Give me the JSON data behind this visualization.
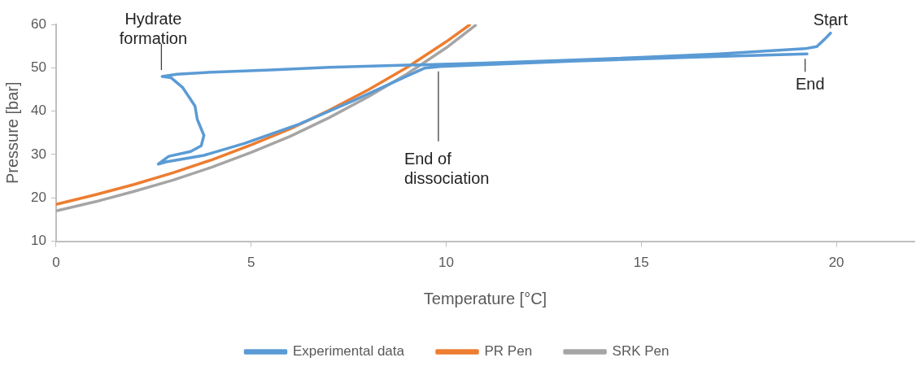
{
  "chart_data": {
    "type": "line",
    "xlabel": "Temperature [°C]",
    "ylabel": "Pressure [bar]",
    "xlim": [
      0,
      22
    ],
    "xticks": [
      0,
      5,
      10,
      15,
      20
    ],
    "ylim": [
      10,
      60
    ],
    "yticks": [
      10,
      20,
      30,
      40,
      50,
      60
    ],
    "grid": false,
    "legend": "bottom",
    "marker": "none",
    "line_style": "solid",
    "series": [
      {
        "name": "Experimental data",
        "color": "#5b9bd5",
        "x": [
          19.85,
          19.7,
          19.5,
          19.2,
          17,
          15,
          13,
          11,
          9,
          7,
          5.5,
          4,
          3.1,
          2.72,
          2.95,
          3.24,
          3.56,
          3.62,
          3.79,
          3.72,
          3.45,
          2.89,
          2.62,
          2.82,
          3.79,
          4.84,
          6.23,
          7.64,
          8.68,
          9.44,
          9.85,
          11,
          13.2,
          16.2,
          19.25
        ],
        "values": [
          58,
          56.6,
          54.9,
          54.4,
          53.2,
          52.4,
          51.7,
          51.1,
          50.6,
          50.1,
          49.5,
          49,
          48.5,
          48,
          47.7,
          45.5,
          41.2,
          38.1,
          34.4,
          32,
          30.7,
          29.6,
          27.8,
          28.3,
          29.8,
          32.6,
          37,
          42.5,
          46.8,
          49.9,
          50.3,
          50.7,
          51.5,
          52.4,
          53.2
        ]
      },
      {
        "name": "PR Pen",
        "color": "#ed7d31",
        "x": [
          0,
          1,
          2,
          3,
          4,
          5,
          6,
          7,
          8,
          9,
          10,
          10.6
        ],
        "values": [
          18.5,
          20.7,
          23.1,
          25.8,
          28.8,
          32.2,
          35.9,
          40.2,
          44.9,
          50.1,
          56,
          59.9
        ]
      },
      {
        "name": "SRK Pen",
        "color": "#a5a5a5",
        "x": [
          0,
          1,
          2,
          3,
          4,
          5,
          6,
          7,
          8,
          9,
          10,
          10.75
        ],
        "values": [
          17,
          19.1,
          21.5,
          24.1,
          27.1,
          30.5,
          34.2,
          38.5,
          43.3,
          48.6,
          54.6,
          59.8
        ]
      }
    ],
    "annotations": [
      {
        "text": "Hydrate formation",
        "x": 2.7,
        "y": 48
      },
      {
        "text": "Start",
        "x": 19.85,
        "y": 58
      },
      {
        "text": "End",
        "x": 19.2,
        "y": 53.2
      },
      {
        "text": "End of dissociation",
        "x": 9.8,
        "y": 50.3
      }
    ]
  }
}
